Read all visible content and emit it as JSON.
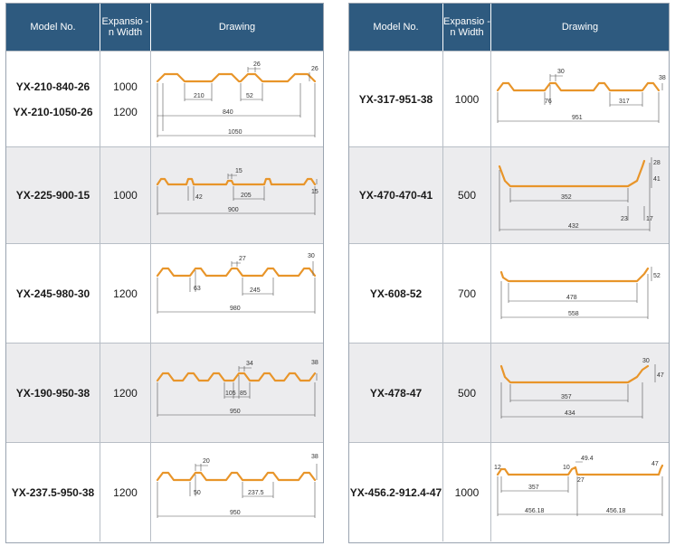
{
  "headers": {
    "model": "Model No.",
    "width": "Expansio -n Width",
    "drawing": "Drawing"
  },
  "colors": {
    "header_bg": "#2e5a7f",
    "profile": "#e8952a",
    "alt_row": "#ececee"
  },
  "left_rows": [
    {
      "models": [
        "YX-210-840-26",
        "YX-210-1050-26"
      ],
      "widths": [
        "1000",
        "1200"
      ],
      "dims": {
        "top": "26",
        "h": "26",
        "a": "210",
        "b": "52",
        "c": "840",
        "d": "1050"
      }
    },
    {
      "models": [
        "YX-225-900-15"
      ],
      "widths": [
        "1000"
      ],
      "dims": {
        "top": "15",
        "h": "15",
        "a": "42",
        "b": "205",
        "c": "900"
      }
    },
    {
      "models": [
        "YX-245-980-30"
      ],
      "widths": [
        "1200"
      ],
      "dims": {
        "top": "27",
        "h": "30",
        "a": "63",
        "b": "245",
        "c": "980"
      }
    },
    {
      "models": [
        "YX-190-950-38"
      ],
      "widths": [
        "1200"
      ],
      "dims": {
        "top": "34",
        "h": "38",
        "a": "105",
        "b": "85",
        "c": "950"
      }
    },
    {
      "models": [
        "YX-237.5-950-38"
      ],
      "widths": [
        "1200"
      ],
      "dims": {
        "top": "20",
        "h": "38",
        "a": "50",
        "b": "237.5",
        "c": "950"
      }
    }
  ],
  "right_rows": [
    {
      "models": [
        "YX-317-951-38"
      ],
      "widths": [
        "1000"
      ],
      "dims": {
        "top": "30",
        "h": "38",
        "a": "76",
        "b": "317",
        "c": "951"
      }
    },
    {
      "models": [
        "YX-470-470-41"
      ],
      "widths": [
        "500"
      ],
      "dims": {
        "h1": "28",
        "h2": "41",
        "a": "352",
        "b": "23",
        "c": "17",
        "d": "432"
      }
    },
    {
      "models": [
        "YX-608-52"
      ],
      "widths": [
        "700"
      ],
      "dims": {
        "h": "52",
        "a": "478",
        "b": "558"
      }
    },
    {
      "models": [
        "YX-478-47"
      ],
      "widths": [
        "500"
      ],
      "dims": {
        "h1": "30",
        "h2": "47",
        "a": "357",
        "b": "434"
      }
    },
    {
      "models": [
        "YX-456.2-912.4-47"
      ],
      "widths": [
        "1000"
      ],
      "dims": {
        "t1": "12",
        "t2": "49.4",
        "t3": "10",
        "t4": "27",
        "h": "47",
        "a": "357",
        "b": "456.18",
        "c": "456.18"
      }
    }
  ]
}
